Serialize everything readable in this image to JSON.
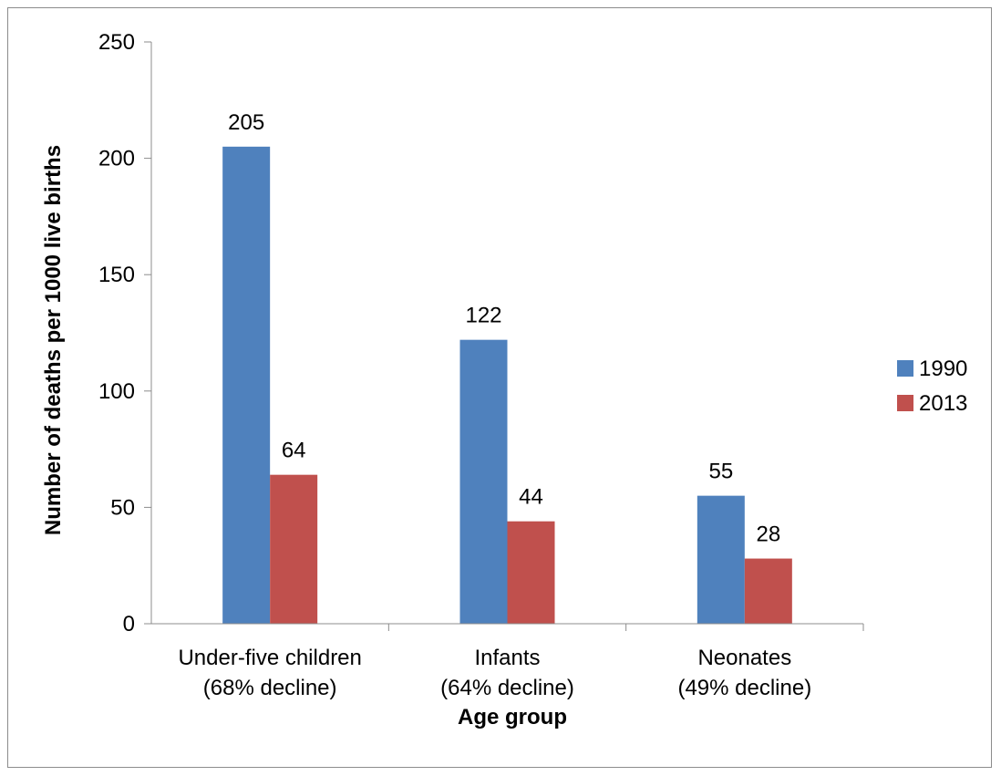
{
  "chart_data": {
    "type": "bar",
    "title": "",
    "xlabel": "Age group",
    "ylabel": "Number of deaths per 1000 live births",
    "ylim": [
      0,
      250
    ],
    "yticks": [
      0,
      50,
      100,
      150,
      200,
      250
    ],
    "categories": [
      [
        "Under-five children",
        "(68% decline)"
      ],
      [
        "Infants",
        "(64% decline)"
      ],
      [
        "Neonates",
        "(49% decline)"
      ]
    ],
    "series": [
      {
        "name": "1990",
        "color": "#4f81bd",
        "values": [
          205,
          122,
          55
        ]
      },
      {
        "name": "2013",
        "color": "#c0504d",
        "values": [
          64,
          44,
          28
        ]
      }
    ],
    "data_labels": true,
    "grid": false,
    "legend_position": "right"
  }
}
